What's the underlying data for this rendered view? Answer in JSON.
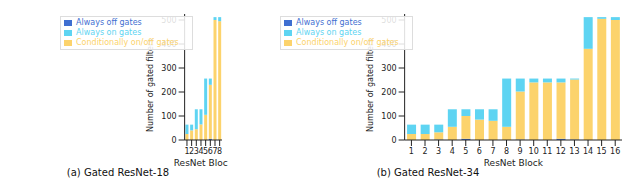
{
  "chart_data": [
    {
      "type": "bar",
      "title": "(a) Gated ResNet-18",
      "x_label": "ResNet Block",
      "y_label": "Number of gated filters",
      "categories": [
        "1",
        "2",
        "3",
        "4",
        "5",
        "6",
        "7",
        "8"
      ],
      "stacked": true,
      "legend": "upper left",
      "ylim": [
        0,
        525
      ],
      "yticks": [
        0,
        100,
        200,
        300,
        400,
        500
      ],
      "series": [
        {
          "name": "Always off gates",
          "color": "#3f6fd1",
          "values": [
            0,
            0,
            0,
            0,
            0,
            5,
            0,
            0
          ]
        },
        {
          "name": "Conditionally on/off gates",
          "color": "#fcd36c",
          "values": [
            25,
            40,
            45,
            65,
            105,
            225,
            500,
            495
          ]
        },
        {
          "name": "Always on gates",
          "color": "#5ed4f2",
          "values": [
            39,
            24,
            83,
            63,
            151,
            26,
            12,
            17
          ]
        }
      ]
    },
    {
      "type": "bar",
      "title": "(b) Gated ResNet-34",
      "x_label": "ResNet Block",
      "y_label": "Number of gated filters",
      "categories": [
        "1",
        "2",
        "3",
        "4",
        "5",
        "6",
        "7",
        "8",
        "9",
        "10",
        "11",
        "12",
        "13",
        "14",
        "15",
        "16"
      ],
      "stacked": true,
      "legend": "upper left",
      "ylim": [
        0,
        525
      ],
      "yticks": [
        0,
        100,
        200,
        300,
        400,
        500
      ],
      "series": [
        {
          "name": "Always off gates",
          "color": "#3f6fd1",
          "values": [
            0,
            0,
            2,
            0,
            5,
            0,
            0,
            0,
            2,
            0,
            0,
            5,
            2,
            0,
            0,
            0
          ]
        },
        {
          "name": "Conditionally on/off gates",
          "color": "#fcd36c",
          "values": [
            25,
            25,
            30,
            55,
            95,
            85,
            80,
            55,
            200,
            240,
            240,
            235,
            250,
            380,
            505,
            500
          ]
        },
        {
          "name": "Always on gates",
          "color": "#5ed4f2",
          "values": [
            39,
            39,
            32,
            73,
            28,
            43,
            48,
            201,
            54,
            16,
            16,
            16,
            4,
            132,
            7,
            12
          ]
        }
      ]
    }
  ]
}
